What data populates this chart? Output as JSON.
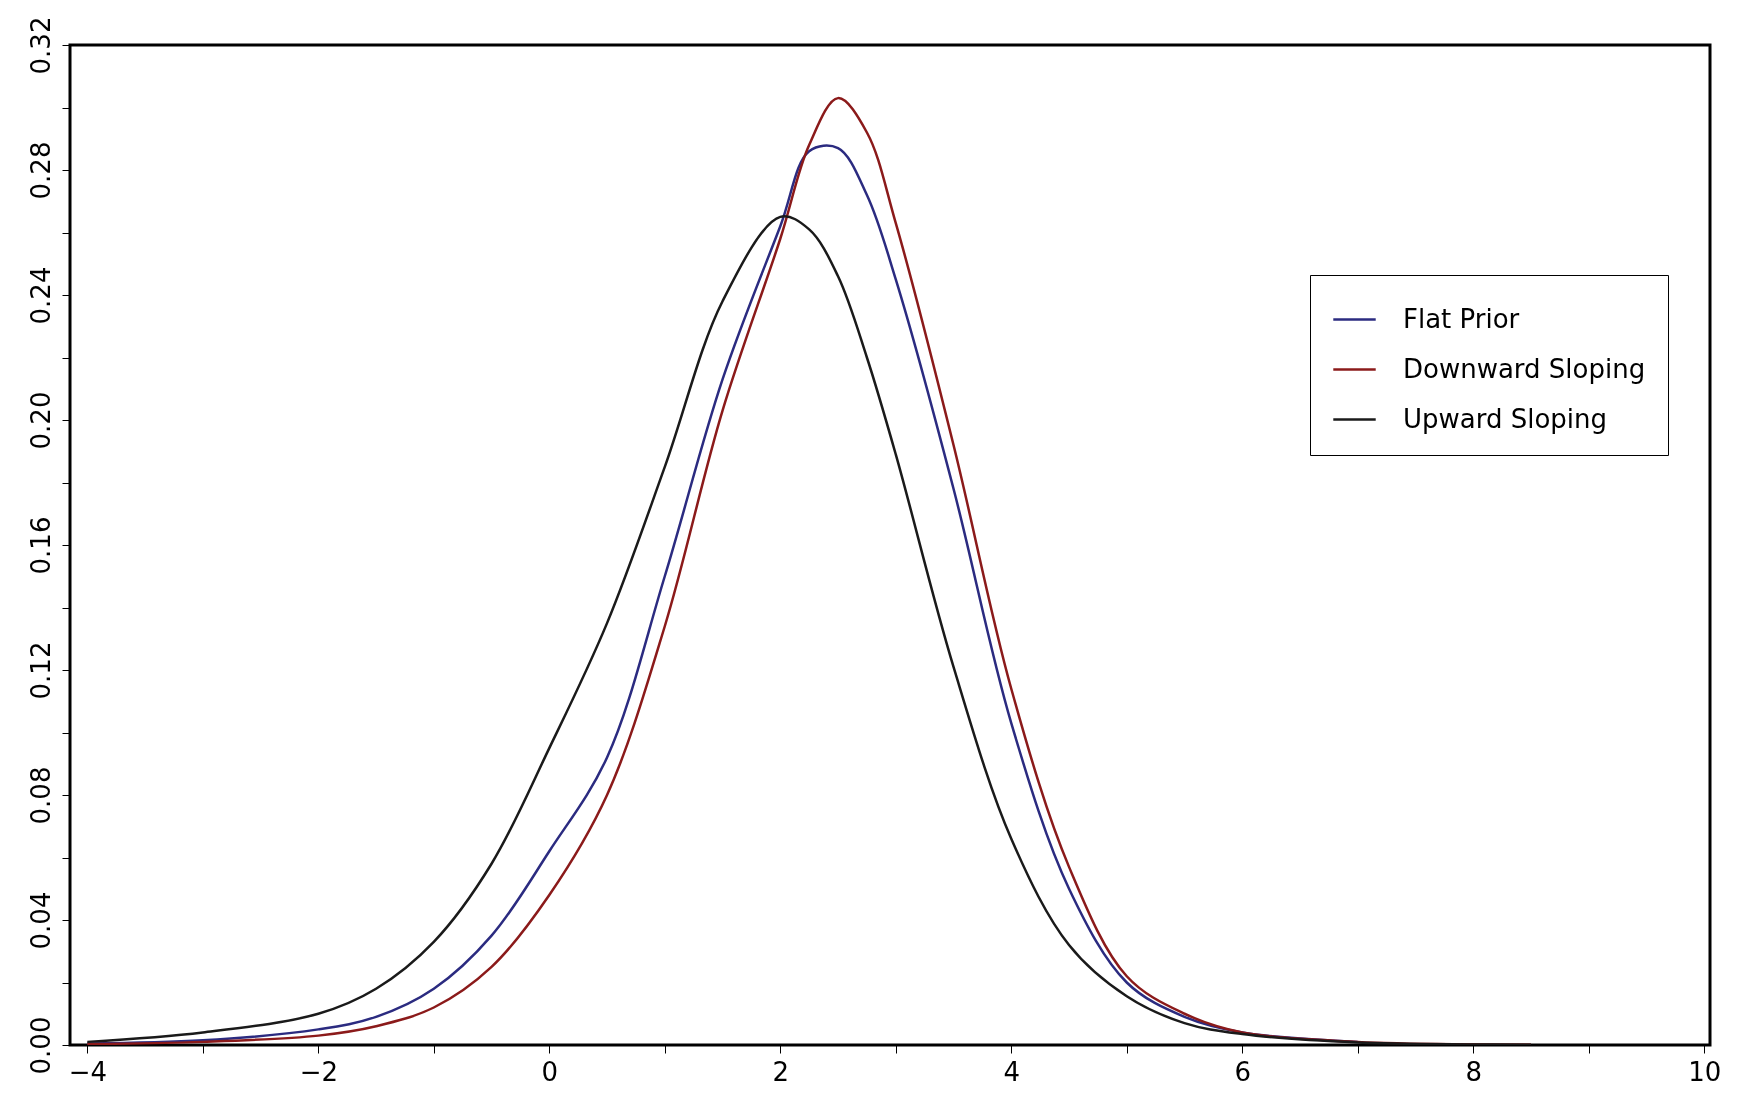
{
  "chart_data": {
    "type": "line",
    "x": [
      -4,
      -3,
      -2,
      -1.5,
      -1,
      -0.5,
      0,
      0.5,
      1,
      1.5,
      2,
      2.25,
      2.5,
      2.75,
      3,
      3.5,
      4,
      4.5,
      5,
      5.5,
      6,
      7,
      8,
      8.5
    ],
    "series": [
      {
        "name": "Flat Prior",
        "color": "#2b2b80",
        "values": [
          0.0005,
          0.0015,
          0.005,
          0.009,
          0.018,
          0.035,
          0.062,
          0.092,
          0.15,
          0.213,
          0.262,
          0.286,
          0.287,
          0.272,
          0.245,
          0.178,
          0.103,
          0.05,
          0.02,
          0.009,
          0.004,
          0.001,
          null,
          null
        ]
      },
      {
        "name": "Downward Sloping",
        "color": "#8b1a1a",
        "values": [
          0.0003,
          0.001,
          0.003,
          0.006,
          0.012,
          0.025,
          0.048,
          0.08,
          0.134,
          0.203,
          0.258,
          0.288,
          0.303,
          0.292,
          0.263,
          0.192,
          0.114,
          0.057,
          0.022,
          0.01,
          0.004,
          0.001,
          0.0002,
          0.0001
        ]
      },
      {
        "name": "Upward Sloping",
        "color": "#1a1a1a",
        "values": [
          0.001,
          0.004,
          0.01,
          0.018,
          0.033,
          0.058,
          0.095,
          0.135,
          0.185,
          0.238,
          0.265,
          0.261,
          0.246,
          0.22,
          0.189,
          0.121,
          0.066,
          0.032,
          0.0156,
          0.007,
          0.0035,
          0.0008,
          0.0002,
          0.0001
        ]
      }
    ],
    "xlim": [
      -4.15,
      10.05
    ],
    "xticks": [
      -4,
      {
        "value": -3,
        "label": null
      },
      -2,
      {
        "value": -1,
        "label": null
      },
      0,
      {
        "value": 1,
        "label": null
      },
      2,
      {
        "value": 3,
        "label": null
      },
      4,
      {
        "value": 5,
        "label": null
      },
      6,
      {
        "value": 7,
        "label": null
      },
      8,
      {
        "value": 9,
        "label": null
      },
      10
    ],
    "ylim": [
      0,
      0.32
    ],
    "yticks": [
      {
        "value": 0,
        "label": "0.00"
      },
      {
        "value": 0.02,
        "label": null
      },
      {
        "value": 0.04,
        "label": "0.04"
      },
      {
        "value": 0.06,
        "label": null
      },
      {
        "value": 0.08,
        "label": "0.08"
      },
      {
        "value": 0.1,
        "label": null
      },
      {
        "value": 0.12,
        "label": "0.12"
      },
      {
        "value": 0.14,
        "label": null
      },
      {
        "value": 0.16,
        "label": "0.16"
      },
      {
        "value": 0.18,
        "label": null
      },
      {
        "value": 0.2,
        "label": "0.20"
      },
      {
        "value": 0.22,
        "label": null
      },
      {
        "value": 0.24,
        "label": "0.24"
      },
      {
        "value": 0.26,
        "label": null
      },
      {
        "value": 0.28,
        "label": "0.28"
      },
      {
        "value": 0.3,
        "label": null
      },
      {
        "value": 0.32,
        "label": "0.32"
      }
    ],
    "grid": false,
    "legend": "top right",
    "line_style": "solid"
  }
}
